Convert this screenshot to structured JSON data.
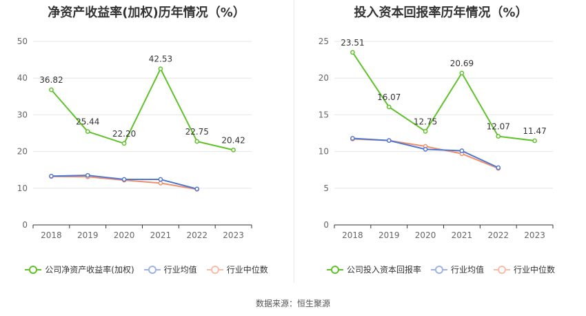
{
  "chart_data": [
    {
      "type": "line",
      "title": "净资产收益率(加权)历年情况（%）",
      "categories": [
        "2018",
        "2019",
        "2020",
        "2021",
        "2022",
        "2023"
      ],
      "ylim": [
        0,
        50
      ],
      "yticks": [
        0,
        10,
        20,
        30,
        40,
        50
      ],
      "series": [
        {
          "name": "公司净资产收益率(加权)",
          "color": "#5ec228",
          "values": [
            36.82,
            25.44,
            22.2,
            42.53,
            22.75,
            20.42
          ],
          "labels": [
            "36.82",
            "25.44",
            "22.20",
            "42.53",
            "22.75",
            "20.42"
          ]
        },
        {
          "name": "行业均值",
          "color": "#4e77d1",
          "values": [
            13.3,
            13.5,
            12.4,
            12.4,
            9.8,
            null
          ]
        },
        {
          "name": "行业中位数",
          "color": "#f28e6b",
          "values": [
            13.2,
            13.1,
            12.2,
            11.4,
            9.7,
            null
          ]
        }
      ]
    },
    {
      "type": "line",
      "title": "投入资本回报率历年情况（%）",
      "categories": [
        "2018",
        "2019",
        "2020",
        "2021",
        "2022",
        "2023"
      ],
      "ylim": [
        0,
        25
      ],
      "yticks": [
        0,
        5,
        10,
        15,
        20,
        25
      ],
      "series": [
        {
          "name": "公司投入资本回报率",
          "color": "#5ec228",
          "values": [
            23.51,
            16.07,
            12.75,
            20.69,
            12.07,
            11.47
          ],
          "labels": [
            "23.51",
            "16.07",
            "12.75",
            "20.69",
            "12.07",
            "11.47"
          ]
        },
        {
          "name": "行业均值",
          "color": "#4e77d1",
          "values": [
            11.8,
            11.5,
            10.3,
            10.1,
            7.8,
            null
          ]
        },
        {
          "name": "行业中位数",
          "color": "#f28e6b",
          "values": [
            11.7,
            11.5,
            10.7,
            9.7,
            7.7,
            null
          ]
        }
      ]
    }
  ],
  "source": "数据来源：恒生聚源"
}
